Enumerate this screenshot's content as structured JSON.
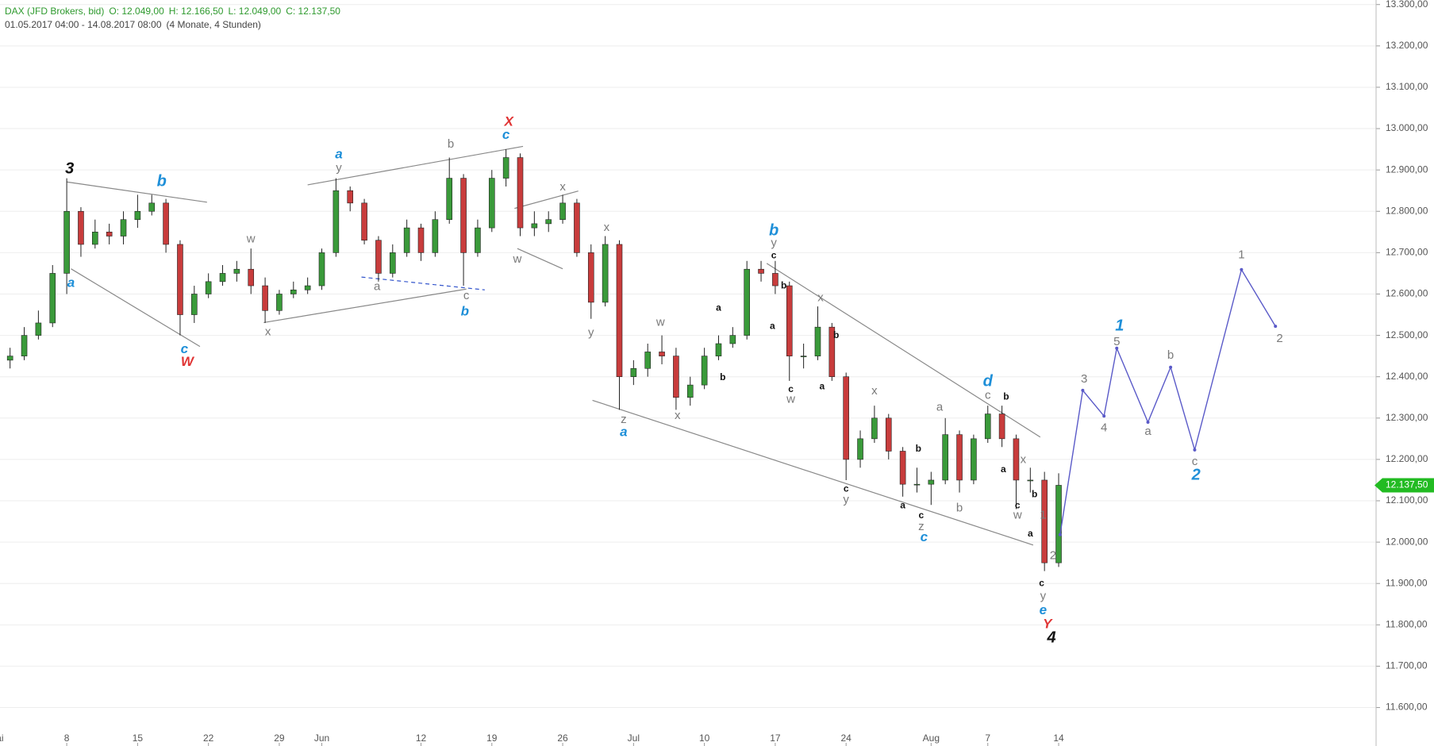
{
  "chart_data": {
    "type": "candlestick",
    "title": "DAX (JFD Brokers, bid)",
    "ohlc": [
      "O: 12.049,00",
      "H: 12.166,50",
      "L: 12.049,00",
      "C: 12.137,50"
    ],
    "subtitle": "01.05.2017 04:00 - 14.08.2017 08:00",
    "span": "(4 Monate, 4 Stunden)",
    "up_color": "#3a9a3a",
    "down_color": "#c83c3c",
    "grid": true,
    "xlim": [
      0.29,
      97.4
    ],
    "ylim": [
      11507,
      13311
    ],
    "xticks": [
      {
        "value": 0,
        "label": "Mai"
      },
      {
        "value": 5,
        "label": "8"
      },
      {
        "value": 10,
        "label": "15"
      },
      {
        "value": 15,
        "label": "22"
      },
      {
        "value": 20,
        "label": "29"
      },
      {
        "value": 23,
        "label": "Jun"
      },
      {
        "value": 30,
        "label": "12"
      },
      {
        "value": 35,
        "label": "19"
      },
      {
        "value": 40,
        "label": "26"
      },
      {
        "value": 45,
        "label": "Jul"
      },
      {
        "value": 50,
        "label": "10"
      },
      {
        "value": 55,
        "label": "17"
      },
      {
        "value": 60,
        "label": "24"
      },
      {
        "value": 66,
        "label": "Aug"
      },
      {
        "value": 70,
        "label": "7"
      },
      {
        "value": 75,
        "label": "14"
      }
    ],
    "yticks": [
      {
        "value": 11600,
        "label": "11.600,00"
      },
      {
        "value": 11700,
        "label": "11.700,00"
      },
      {
        "value": 11800,
        "label": "11.800,00"
      },
      {
        "value": 11900,
        "label": "11.900,00"
      },
      {
        "value": 12000,
        "label": "12.000,00"
      },
      {
        "value": 12100,
        "label": "12.100,00"
      },
      {
        "value": 12200,
        "label": "12.200,00"
      },
      {
        "value": 12300,
        "label": "12.300,00"
      },
      {
        "value": 12400,
        "label": "12.400,00"
      },
      {
        "value": 12500,
        "label": "12.500,00"
      },
      {
        "value": 12600,
        "label": "12.600,00"
      },
      {
        "value": 12700,
        "label": "12.700,00"
      },
      {
        "value": 12800,
        "label": "12.800,00"
      },
      {
        "value": 12900,
        "label": "12.900,00"
      },
      {
        "value": 13000,
        "label": "13.000,00"
      },
      {
        "value": 13100,
        "label": "13.100,00"
      },
      {
        "value": 13200,
        "label": "13.200,00"
      },
      {
        "value": 13300,
        "label": "13.300,00"
      }
    ],
    "x": [
      0,
      1,
      2,
      3,
      4,
      5,
      6,
      7,
      8,
      9,
      10,
      11,
      12,
      13,
      14,
      15,
      16,
      17,
      18,
      19,
      20,
      21,
      22,
      23,
      24,
      25,
      26,
      27,
      28,
      29,
      30,
      31,
      32,
      33,
      34,
      35,
      36,
      37,
      38,
      39,
      40,
      41,
      42,
      43,
      44,
      45,
      46,
      47,
      48,
      49,
      50,
      51,
      52,
      53,
      54,
      55,
      56,
      57,
      58,
      59,
      60,
      61,
      62,
      63,
      64,
      65,
      66,
      67,
      68,
      69,
      70,
      71,
      72,
      73,
      74,
      75
    ],
    "open": [
      12420,
      12440,
      12450,
      12500,
      12530,
      12650,
      12800,
      12720,
      12750,
      12740,
      12780,
      12800,
      12820,
      12720,
      12550,
      12600,
      12630,
      12650,
      12660,
      12620,
      12560,
      12600,
      12610,
      12620,
      12700,
      12850,
      12820,
      12730,
      12650,
      12700,
      12760,
      12700,
      12780,
      12880,
      12700,
      12760,
      12880,
      12930,
      12760,
      12770,
      12780,
      12820,
      12700,
      12580,
      12720,
      12400,
      12420,
      12460,
      12450,
      12350,
      12380,
      12450,
      12480,
      12500,
      12660,
      12650,
      12620,
      12450,
      12450,
      12520,
      12400,
      12200,
      12250,
      12300,
      12220,
      12140,
      12140,
      12150,
      12260,
      12150,
      12250,
      12310,
      12250,
      12150,
      12150,
      11950
    ],
    "high": [
      12460,
      12470,
      12520,
      12560,
      12670,
      12880,
      12810,
      12780,
      12770,
      12800,
      12840,
      12840,
      12830,
      12730,
      12620,
      12650,
      12670,
      12680,
      12710,
      12640,
      12610,
      12630,
      12640,
      12710,
      12880,
      12860,
      12830,
      12740,
      12720,
      12780,
      12770,
      12800,
      12930,
      12890,
      12780,
      12900,
      12950,
      12940,
      12800,
      12800,
      12840,
      12830,
      12720,
      12740,
      12730,
      12440,
      12480,
      12500,
      12470,
      12400,
      12470,
      12500,
      12520,
      12680,
      12680,
      12680,
      12630,
      12480,
      12570,
      12530,
      12410,
      12270,
      12330,
      12310,
      12230,
      12180,
      12170,
      12300,
      12270,
      12260,
      12330,
      12330,
      12260,
      12180,
      12170,
      12166.5
    ],
    "low": [
      12400,
      12420,
      12440,
      12490,
      12520,
      12600,
      12690,
      12710,
      12720,
      12720,
      12760,
      12790,
      12700,
      12500,
      12530,
      12590,
      12620,
      12630,
      12600,
      12530,
      12550,
      12590,
      12600,
      12610,
      12690,
      12800,
      12720,
      12630,
      12640,
      12690,
      12680,
      12690,
      12770,
      12620,
      12690,
      12750,
      12860,
      12740,
      12740,
      12750,
      12770,
      12690,
      12540,
      12570,
      12320,
      12380,
      12400,
      12430,
      12320,
      12330,
      12370,
      12440,
      12470,
      12490,
      12630,
      12600,
      12390,
      12420,
      12440,
      12390,
      12150,
      12180,
      12240,
      12200,
      12110,
      12120,
      12090,
      12140,
      12120,
      12140,
      12240,
      12230,
      12080,
      12120,
      11930,
      11940
    ],
    "close": [
      12440,
      12450,
      12500,
      12530,
      12650,
      12800,
      12720,
      12750,
      12740,
      12780,
      12800,
      12820,
      12720,
      12550,
      12600,
      12630,
      12650,
      12660,
      12620,
      12560,
      12600,
      12610,
      12620,
      12700,
      12850,
      12820,
      12730,
      12650,
      12700,
      12760,
      12700,
      12780,
      12880,
      12700,
      12760,
      12880,
      12930,
      12760,
      12770,
      12780,
      12820,
      12700,
      12580,
      12720,
      12400,
      12420,
      12460,
      12450,
      12350,
      12380,
      12450,
      12480,
      12500,
      12660,
      12650,
      12620,
      12450,
      12450,
      12520,
      12400,
      12200,
      12250,
      12300,
      12220,
      12140,
      12140,
      12150,
      12260,
      12150,
      12250,
      12310,
      12250,
      12150,
      12150,
      11950,
      12137.5
    ],
    "last_price": {
      "value": 12137.5,
      "label": "12.137,50",
      "color": "#22bb22"
    },
    "lines": [
      {
        "color": "#888888",
        "dashed": false,
        "x": [
          5.0,
          14.9
        ],
        "y": [
          12871,
          12822
        ]
      },
      {
        "color": "#888888",
        "dashed": false,
        "x": [
          5.3,
          14.4
        ],
        "y": [
          12661,
          12473
        ]
      },
      {
        "color": "#888888",
        "dashed": false,
        "x": [
          22.0,
          37.2
        ],
        "y": [
          12864,
          12957
        ]
      },
      {
        "color": "#888888",
        "dashed": false,
        "x": [
          18.9,
          33.2
        ],
        "y": [
          12531,
          12612
        ]
      },
      {
        "color": "#3355cc",
        "dashed": true,
        "x": [
          25.8,
          34.5
        ],
        "y": [
          12641,
          12610
        ]
      },
      {
        "color": "#888888",
        "dashed": false,
        "x": [
          36.6,
          41.1
        ],
        "y": [
          12807,
          12849
        ]
      },
      {
        "color": "#888888",
        "dashed": false,
        "x": [
          36.8,
          40.0
        ],
        "y": [
          12710,
          12661
        ]
      },
      {
        "color": "#888888",
        "dashed": false,
        "x": [
          42.1,
          73.2
        ],
        "y": [
          12343,
          11993
        ]
      },
      {
        "color": "#888888",
        "dashed": false,
        "x": [
          54.4,
          73.7
        ],
        "y": [
          12674,
          12254
        ]
      }
    ],
    "projection": {
      "color": "#5a5ac8",
      "x": [
        75.1,
        76.7,
        78.2,
        79.1,
        81.3,
        82.9,
        84.6,
        87.9,
        90.3
      ],
      "y": [
        12018,
        12367,
        12305,
        12469,
        12290,
        12423,
        12223,
        12659,
        12522
      ]
    },
    "annotation_colors": {
      "black": "#111111",
      "blue": "#1e8fd8",
      "gray": "#7a7a7a",
      "red": "#e03434"
    },
    "annotations": [
      {
        "text": "3",
        "color": "black",
        "style": "major",
        "x": 5.2,
        "y": 12902
      },
      {
        "text": "a",
        "color": "blue",
        "style": "mid",
        "x": 5.3,
        "y": 12626
      },
      {
        "text": "b",
        "color": "blue",
        "style": "major",
        "x": 11.7,
        "y": 12871
      },
      {
        "text": "c",
        "color": "blue",
        "style": "mid",
        "x": 13.3,
        "y": 12466
      },
      {
        "text": "W",
        "color": "red",
        "style": "mid",
        "x": 13.5,
        "y": 12435
      },
      {
        "text": "w",
        "color": "gray",
        "style": "minor",
        "x": 18.0,
        "y": 12732
      },
      {
        "text": "x",
        "color": "gray",
        "style": "minor",
        "x": 19.2,
        "y": 12508
      },
      {
        "text": "a",
        "color": "blue",
        "style": "mid",
        "x": 24.2,
        "y": 12937
      },
      {
        "text": "y",
        "color": "gray",
        "style": "minor",
        "x": 24.2,
        "y": 12904
      },
      {
        "text": "a",
        "color": "gray",
        "style": "minor",
        "x": 26.9,
        "y": 12617
      },
      {
        "text": "b",
        "color": "gray",
        "style": "minor",
        "x": 32.1,
        "y": 12962
      },
      {
        "text": "c",
        "color": "gray",
        "style": "minor",
        "x": 33.2,
        "y": 12595
      },
      {
        "text": "b",
        "color": "blue",
        "style": "mid",
        "x": 33.1,
        "y": 12557
      },
      {
        "text": "X",
        "color": "red",
        "style": "mid",
        "x": 36.2,
        "y": 13015
      },
      {
        "text": "c",
        "color": "blue",
        "style": "mid",
        "x": 36.0,
        "y": 12984
      },
      {
        "text": "x",
        "color": "gray",
        "style": "minor",
        "x": 40.0,
        "y": 12858
      },
      {
        "text": "w",
        "color": "gray",
        "style": "minor",
        "x": 36.8,
        "y": 12683
      },
      {
        "text": "x",
        "color": "gray",
        "style": "minor",
        "x": 43.1,
        "y": 12760
      },
      {
        "text": "y",
        "color": "gray",
        "style": "minor",
        "x": 42.0,
        "y": 12506
      },
      {
        "text": "w",
        "color": "gray",
        "style": "minor",
        "x": 46.9,
        "y": 12531
      },
      {
        "text": "z",
        "color": "gray",
        "style": "minor",
        "x": 44.3,
        "y": 12296
      },
      {
        "text": "a",
        "color": "blue",
        "style": "mid",
        "x": 44.3,
        "y": 12265
      },
      {
        "text": "x",
        "color": "gray",
        "style": "minor",
        "x": 48.1,
        "y": 12305
      },
      {
        "text": "a",
        "color": "black",
        "style": "small",
        "x": 51.0,
        "y": 12566
      },
      {
        "text": "b",
        "color": "black",
        "style": "small",
        "x": 51.3,
        "y": 12398
      },
      {
        "text": "b",
        "color": "blue",
        "style": "major",
        "x": 54.9,
        "y": 12752
      },
      {
        "text": "y",
        "color": "gray",
        "style": "minor",
        "x": 54.9,
        "y": 12723
      },
      {
        "text": "c",
        "color": "black",
        "style": "small",
        "x": 54.9,
        "y": 12692
      },
      {
        "text": "b",
        "color": "black",
        "style": "small",
        "x": 55.6,
        "y": 12619
      },
      {
        "text": "a",
        "color": "black",
        "style": "small",
        "x": 54.8,
        "y": 12522
      },
      {
        "text": "x",
        "color": "gray",
        "style": "minor",
        "x": 58.2,
        "y": 12590
      },
      {
        "text": "b",
        "color": "black",
        "style": "small",
        "x": 59.3,
        "y": 12500
      },
      {
        "text": "c",
        "color": "black",
        "style": "small",
        "x": 56.1,
        "y": 12369
      },
      {
        "text": "w",
        "color": "gray",
        "style": "minor",
        "x": 56.1,
        "y": 12345
      },
      {
        "text": "a",
        "color": "black",
        "style": "small",
        "x": 58.3,
        "y": 12376
      },
      {
        "text": "x",
        "color": "gray",
        "style": "minor",
        "x": 62.0,
        "y": 12365
      },
      {
        "text": "a",
        "color": "gray",
        "style": "minor",
        "x": 66.6,
        "y": 12325
      },
      {
        "text": "b",
        "color": "black",
        "style": "small",
        "x": 65.1,
        "y": 12225
      },
      {
        "text": "c",
        "color": "black",
        "style": "small",
        "x": 60.0,
        "y": 12128
      },
      {
        "text": "y",
        "color": "gray",
        "style": "minor",
        "x": 60.0,
        "y": 12102
      },
      {
        "text": "a",
        "color": "black",
        "style": "small",
        "x": 64.0,
        "y": 12088
      },
      {
        "text": "c",
        "color": "black",
        "style": "small",
        "x": 65.3,
        "y": 12064
      },
      {
        "text": "z",
        "color": "gray",
        "style": "minor",
        "x": 65.3,
        "y": 12037
      },
      {
        "text": "c",
        "color": "blue",
        "style": "mid",
        "x": 65.5,
        "y": 12011
      },
      {
        "text": "b",
        "color": "gray",
        "style": "minor",
        "x": 68.0,
        "y": 12082
      },
      {
        "text": "d",
        "color": "blue",
        "style": "major",
        "x": 70.0,
        "y": 12387
      },
      {
        "text": "c",
        "color": "gray",
        "style": "minor",
        "x": 70.0,
        "y": 12354
      },
      {
        "text": "b",
        "color": "black",
        "style": "small",
        "x": 71.3,
        "y": 12351
      },
      {
        "text": "x",
        "color": "gray",
        "style": "minor",
        "x": 72.5,
        "y": 12199
      },
      {
        "text": "a",
        "color": "black",
        "style": "small",
        "x": 71.1,
        "y": 12175
      },
      {
        "text": "b",
        "color": "black",
        "style": "small",
        "x": 73.3,
        "y": 12115
      },
      {
        "text": "c",
        "color": "black",
        "style": "small",
        "x": 72.1,
        "y": 12088
      },
      {
        "text": "w",
        "color": "gray",
        "style": "minor",
        "x": 72.1,
        "y": 12064
      },
      {
        "text": "a",
        "color": "black",
        "style": "small",
        "x": 73.0,
        "y": 12020
      },
      {
        "text": "1",
        "color": "gray",
        "style": "minor",
        "x": 73.9,
        "y": 12064
      },
      {
        "text": "2",
        "color": "gray",
        "style": "minor",
        "x": 74.6,
        "y": 11967
      },
      {
        "text": "c",
        "color": "black",
        "style": "small",
        "x": 73.8,
        "y": 11900
      },
      {
        "text": "y",
        "color": "gray",
        "style": "minor",
        "x": 73.9,
        "y": 11869
      },
      {
        "text": "e",
        "color": "blue",
        "style": "mid",
        "x": 73.9,
        "y": 11834
      },
      {
        "text": "Y",
        "color": "red",
        "style": "mid",
        "x": 74.2,
        "y": 11801
      },
      {
        "text": "4",
        "color": "black",
        "style": "major",
        "x": 74.5,
        "y": 11768
      },
      {
        "text": "3",
        "color": "gray",
        "style": "minor",
        "x": 76.8,
        "y": 12394
      },
      {
        "text": "4",
        "color": "gray",
        "style": "minor",
        "x": 78.2,
        "y": 12276
      },
      {
        "text": "1",
        "color": "blue",
        "style": "major",
        "x": 79.3,
        "y": 12522
      },
      {
        "text": "5",
        "color": "gray",
        "style": "minor",
        "x": 79.1,
        "y": 12484
      },
      {
        "text": "a",
        "color": "gray",
        "style": "minor",
        "x": 81.3,
        "y": 12267
      },
      {
        "text": "b",
        "color": "gray",
        "style": "minor",
        "x": 82.9,
        "y": 12451
      },
      {
        "text": "c",
        "color": "gray",
        "style": "minor",
        "x": 84.6,
        "y": 12194
      },
      {
        "text": "2",
        "color": "blue",
        "style": "major",
        "x": 84.7,
        "y": 12161
      },
      {
        "text": "1",
        "color": "gray",
        "style": "minor",
        "x": 87.9,
        "y": 12694
      },
      {
        "text": "2",
        "color": "gray",
        "style": "minor",
        "x": 90.6,
        "y": 12491
      }
    ]
  }
}
